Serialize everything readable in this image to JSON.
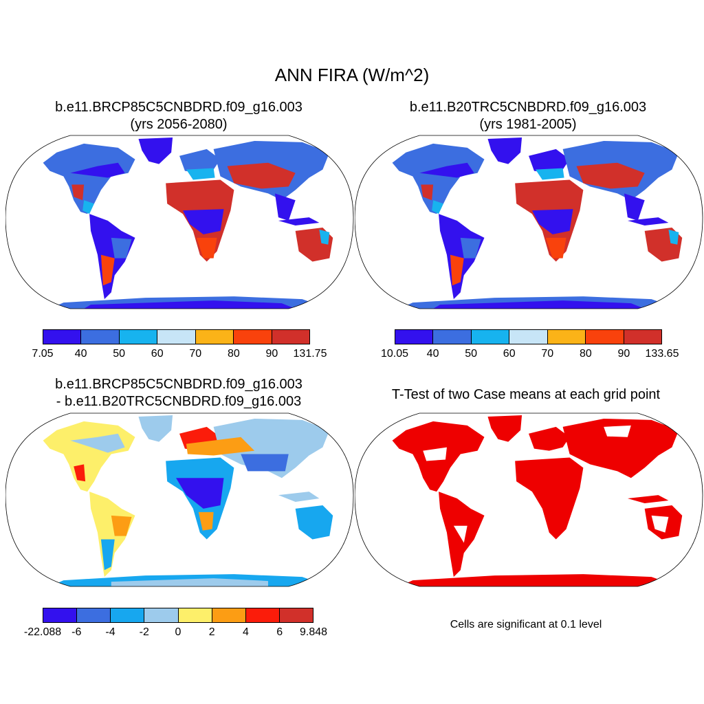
{
  "title": "ANN FIRA (W/m^2)",
  "panels": [
    {
      "title_line1": "b.e11.BRCP85C5CNBDRD.f09_g16.003",
      "title_line2": "(yrs 2056-2080)",
      "colorbar": {
        "colors": [
          "#3311ee",
          "#3c6ee0",
          "#17b3ef",
          "#c7e5f7",
          "#fbb318",
          "#f9420c",
          "#d1302a"
        ],
        "labels": [
          "7.05",
          "40",
          "50",
          "60",
          "70",
          "80",
          "90",
          "131.75"
        ]
      }
    },
    {
      "title_line1": "b.e11.B20TRC5CNBDRD.f09_g16.003",
      "title_line2": "(yrs 1981-2005)",
      "colorbar": {
        "colors": [
          "#3311ee",
          "#3c6ee0",
          "#17b3ef",
          "#c7e5f7",
          "#fbb318",
          "#f9420c",
          "#d1302a"
        ],
        "labels": [
          "10.05",
          "40",
          "50",
          "60",
          "70",
          "80",
          "90",
          "133.65"
        ]
      }
    },
    {
      "title_line1": "b.e11.BRCP85C5CNBDRD.f09_g16.003",
      "title_line2": "- b.e11.B20TRC5CNBDRD.f09_g16.003",
      "colorbar": {
        "colors": [
          "#3311ee",
          "#3c6ee0",
          "#17a7ef",
          "#9dcbec",
          "#fdef6a",
          "#fc9d14",
          "#fb1c0a",
          "#d1302a"
        ],
        "labels": [
          "-22.088",
          "-6",
          "-4",
          "-2",
          "0",
          "2",
          "4",
          "6",
          "9.848"
        ]
      }
    },
    {
      "title_line1": "T-Test of two Case means at each grid point",
      "note": "Cells are significant at 0.1 level",
      "sig_color": "#ee0000"
    }
  ]
}
